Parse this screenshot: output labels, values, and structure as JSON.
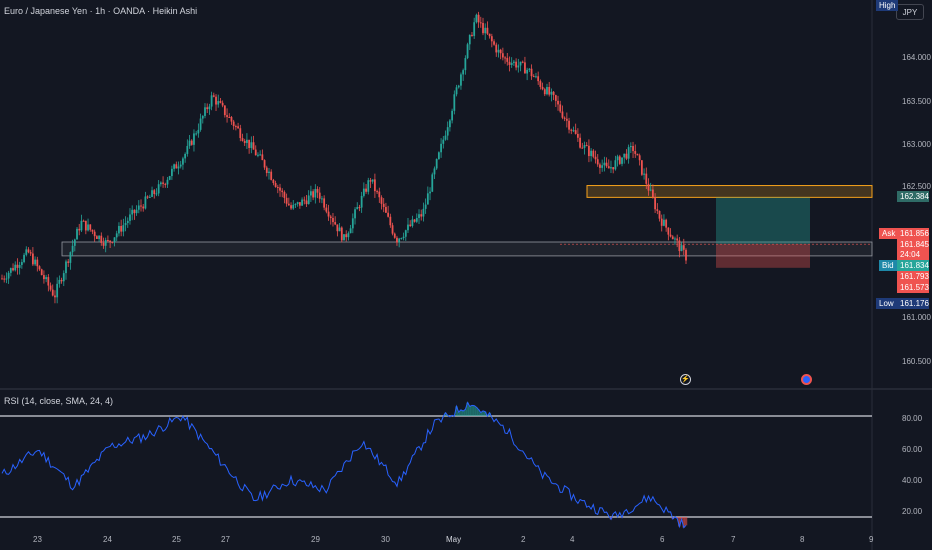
{
  "header": {
    "title": "Euro / Japanese Yen · 1h · OANDA · Heikin Ashi",
    "currency_button": "JPY"
  },
  "rsi": {
    "title": "RSI (14, close, SMA, 24, 4)",
    "axis_ticks": [
      "80.00",
      "60.00",
      "40.00",
      "20.00"
    ],
    "upper_band": 80,
    "lower_band": 20
  },
  "price_axis": {
    "ticks": [
      "164.000",
      "163.500",
      "163.000",
      "162.500",
      "161.000",
      "160.500"
    ]
  },
  "time_axis": {
    "labels": [
      "23",
      "24",
      "25",
      "27",
      "29",
      "30",
      "May",
      "2",
      "4",
      "6",
      "7",
      "8",
      "9"
    ]
  },
  "price_tags": {
    "high_label": "High",
    "zone_top": "162.384",
    "ask_label": "Ask",
    "ask_value": "161.856",
    "last_value": "161.845",
    "countdown": "24:04",
    "bid_label": "Bid",
    "bid_value": "161.834",
    "level_1": "161.793",
    "level_2": "161.573",
    "low_label": "Low",
    "low_value": "161.176"
  },
  "chart_data": {
    "type": "candlestick",
    "symbol": "EURJPY",
    "interval": "1h",
    "style": "Heikin Ashi",
    "colors": {
      "background": "#131722",
      "up": "#26a69a",
      "down": "#ef5350",
      "rsi_line": "#2962ff",
      "supply_zone": "#f7a21b",
      "grid": "#1e222d"
    },
    "path_points": [
      {
        "t": "Apr 22",
        "price": 161.45
      },
      {
        "t": "Apr 23",
        "price": 161.75
      },
      {
        "t": "Apr 23",
        "price": 161.25
      },
      {
        "t": "Apr 23",
        "price": 162.1
      },
      {
        "t": "Apr 24",
        "price": 161.85
      },
      {
        "t": "Apr 24",
        "price": 162.2
      },
      {
        "t": "Apr 25",
        "price": 162.5
      },
      {
        "t": "Apr 25",
        "price": 162.9
      },
      {
        "t": "Apr 26",
        "price": 163.55
      },
      {
        "t": "Apr 26",
        "price": 163.15
      },
      {
        "t": "Apr 28",
        "price": 162.75
      },
      {
        "t": "Apr 29",
        "price": 162.25
      },
      {
        "t": "Apr 29",
        "price": 162.45
      },
      {
        "t": "Apr 30",
        "price": 161.9
      },
      {
        "t": "Apr 30",
        "price": 162.6
      },
      {
        "t": "Apr 30",
        "price": 161.9
      },
      {
        "t": "May 1",
        "price": 162.2
      },
      {
        "t": "May 1",
        "price": 163.3
      },
      {
        "t": "May 2",
        "price": 164.45
      },
      {
        "t": "May 2",
        "price": 164.0
      },
      {
        "t": "May 3",
        "price": 163.85
      },
      {
        "t": "May 3",
        "price": 163.5
      },
      {
        "t": "May 5",
        "price": 163.0
      },
      {
        "t": "May 5",
        "price": 162.7
      },
      {
        "t": "May 6",
        "price": 162.95
      },
      {
        "t": "May 6",
        "price": 162.15
      },
      {
        "t": "May 6",
        "price": 161.7
      }
    ],
    "zones": [
      {
        "name": "supply",
        "low": 162.384,
        "high": 162.52
      },
      {
        "name": "range",
        "low": 161.71,
        "high": 161.87
      }
    ],
    "position": {
      "entry": 161.845,
      "target": 162.384,
      "stop": 161.573
    },
    "price_range": [
      160.2,
      164.6
    ],
    "rsi_points": [
      {
        "t": "Apr 22",
        "rsi": 45
      },
      {
        "t": "Apr 23",
        "rsi": 60
      },
      {
        "t": "Apr 23",
        "rsi": 38
      },
      {
        "t": "Apr 24",
        "rsi": 62
      },
      {
        "t": "Apr 25",
        "rsi": 68
      },
      {
        "t": "Apr 26",
        "rsi": 80
      },
      {
        "t": "Apr 27",
        "rsi": 55
      },
      {
        "t": "Apr 28",
        "rsi": 30
      },
      {
        "t": "Apr 29",
        "rsi": 42
      },
      {
        "t": "Apr 30",
        "rsi": 36
      },
      {
        "t": "Apr 30",
        "rsi": 65
      },
      {
        "t": "May 1",
        "rsi": 40
      },
      {
        "t": "May 1",
        "rsi": 75
      },
      {
        "t": "May 2",
        "rsi": 88
      },
      {
        "t": "May 3",
        "rsi": 72
      },
      {
        "t": "May 4",
        "rsi": 45
      },
      {
        "t": "May 5",
        "rsi": 30
      },
      {
        "t": "May 6",
        "rsi": 20
      },
      {
        "t": "May 6",
        "rsi": 32
      },
      {
        "t": "May 6",
        "rsi": 14
      }
    ]
  }
}
